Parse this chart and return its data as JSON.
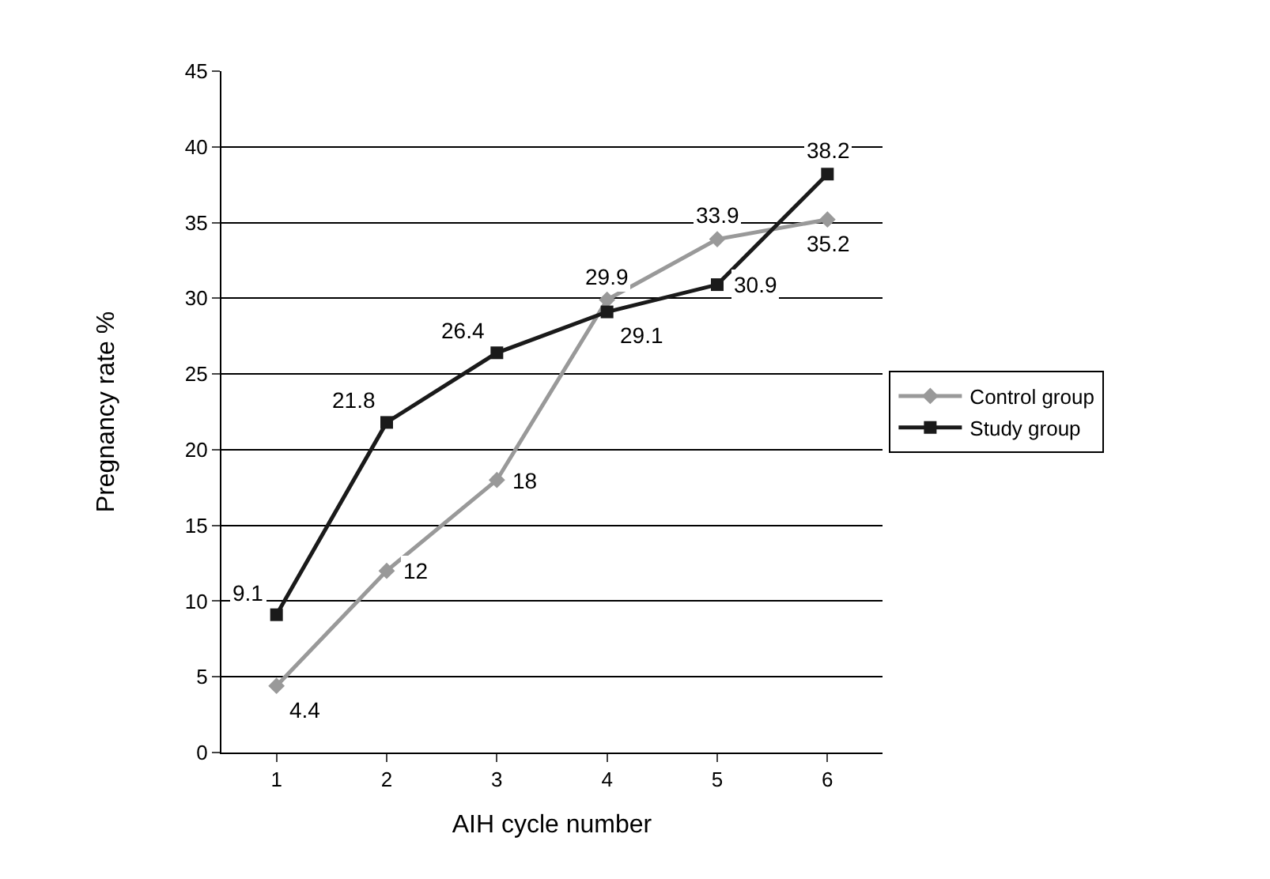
{
  "chart_data": {
    "type": "line",
    "xlabel": "AIH cycle number",
    "ylabel": "Pregnancy rate %",
    "categories": [
      "1",
      "2",
      "3",
      "4",
      "5",
      "6"
    ],
    "series": [
      {
        "name": "Control group",
        "color": "#999999",
        "marker": "diamond",
        "values": [
          4.4,
          12,
          18,
          29.9,
          33.9,
          35.2
        ]
      },
      {
        "name": "Study group",
        "color": "#1a1a1a",
        "marker": "square",
        "values": [
          9.1,
          21.8,
          26.4,
          29.1,
          30.9,
          38.2
        ]
      }
    ],
    "ylim": [
      0,
      45
    ],
    "yticks": [
      0,
      5,
      10,
      15,
      20,
      25,
      30,
      35,
      40,
      45
    ],
    "grid": "y",
    "legend": "right",
    "data_labels": true,
    "line_style": "solid"
  }
}
